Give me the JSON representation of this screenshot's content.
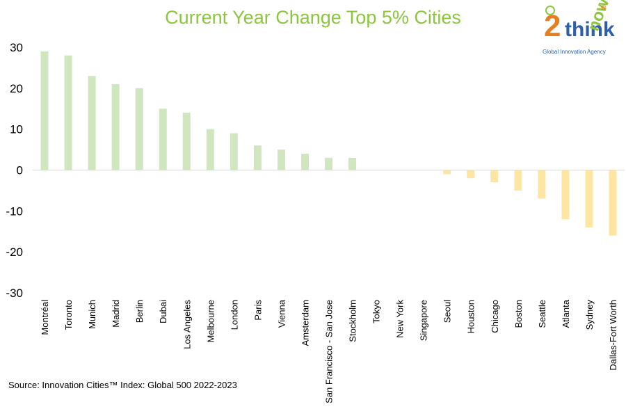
{
  "chart_data": {
    "type": "bar",
    "title": "Current Year Change Top 5% Cities",
    "categories": [
      "Montréal",
      "Toronto",
      "Munich",
      "Madrid",
      "Berlin",
      "Dubai",
      "Los Angeles",
      "Melbourne",
      "London",
      "Paris",
      "Vienna",
      "Amsterdam",
      "San Francisco - San Jose",
      "Stockholm",
      "Tokyo",
      "New York",
      "Singapore",
      "Seoul",
      "Houston",
      "Chicago",
      "Boston",
      "Seattle",
      "Atlanta",
      "Sydney",
      "Dallas-Fort Worth"
    ],
    "values": [
      29,
      28,
      23,
      21,
      20,
      15,
      14,
      10,
      9,
      6,
      5,
      4,
      3,
      3,
      0,
      0,
      0,
      -1,
      -2,
      -3,
      -5,
      -7,
      -12,
      -14,
      -16
    ],
    "ylim": [
      -30,
      30
    ],
    "yticks": [
      30,
      20,
      10,
      0,
      -10,
      -20,
      -30
    ],
    "xlabel": "",
    "ylabel": "",
    "grid": false,
    "legend": "none",
    "colors": {
      "positive": "#cfe6bf",
      "negative": "#fde6a2",
      "title": "#8cc63f"
    }
  },
  "source": "Source: Innovation Cities™ Index: Global 500 2022-2023",
  "logo": {
    "brand_2": "2",
    "brand_think": "think",
    "brand_now": "now",
    "registered": "®",
    "tagline": "Global Innovation Agency"
  }
}
